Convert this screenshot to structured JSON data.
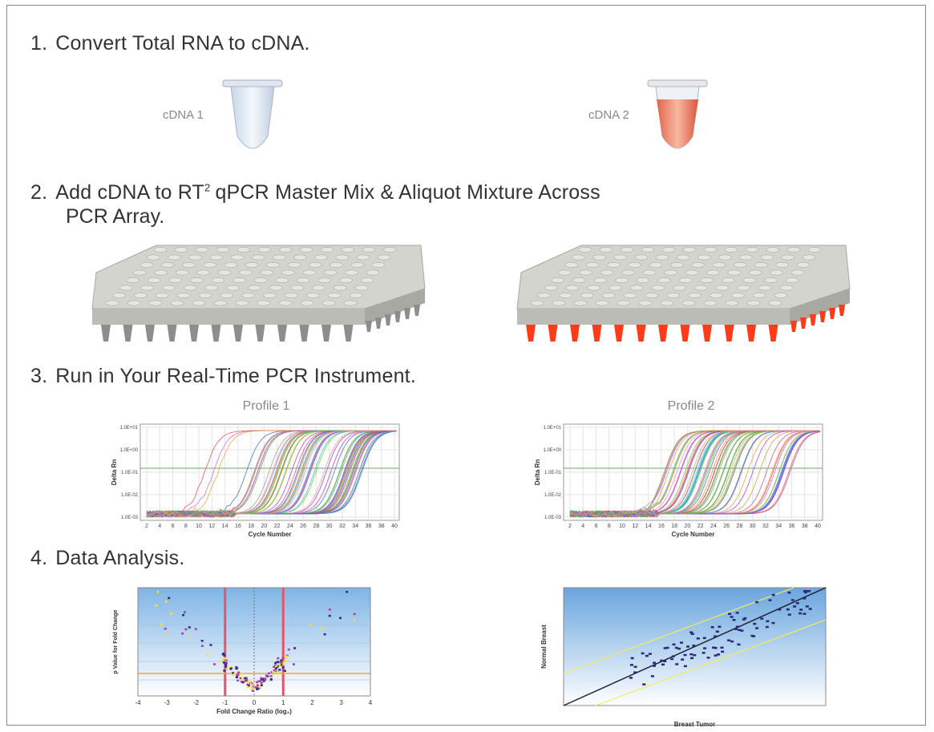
{
  "steps": [
    {
      "number": "1.",
      "title": "Convert Total RNA to cDNA."
    },
    {
      "number": "2.",
      "title": "Add cDNA to RT",
      "superscript": "2",
      "title_rest": "qPCR Master Mix & Aliquot Mixture Across",
      "title_line2": "PCR Array."
    },
    {
      "number": "3.",
      "title": "Run in Your Real-Time PCR Instrument."
    },
    {
      "number": "4.",
      "title": "Data Analysis."
    }
  ],
  "tubes": [
    {
      "label": "cDNA 1"
    },
    {
      "label": "cDNA 2"
    }
  ],
  "profiles": [
    {
      "title": "Profile 1"
    },
    {
      "title": "Profile 2"
    }
  ],
  "profile_axes": {
    "x_label": "Cycle Number",
    "y_label": "Delta Rn",
    "x_ticks": [
      "2",
      "4",
      "6",
      "8",
      "10",
      "12",
      "14",
      "16",
      "18",
      "20",
      "22",
      "24",
      "26",
      "28",
      "30",
      "32",
      "34",
      "36",
      "38",
      "40"
    ],
    "y_ticks": [
      "1.0E+01",
      "1.0E+00",
      "1.0E-01",
      "1.0E-02",
      "1.0E-03"
    ]
  },
  "volcano": {
    "x_label": "Fold Change Ratio (log₂)",
    "y_label": "p Value for Fold Change",
    "x_ticks": [
      "-4",
      "-3",
      "-2",
      "-1",
      "0",
      "1",
      "2",
      "3",
      "4"
    ]
  },
  "scatter": {
    "x_label": "Breast Tumor",
    "y_label": "Normal Breast"
  }
}
